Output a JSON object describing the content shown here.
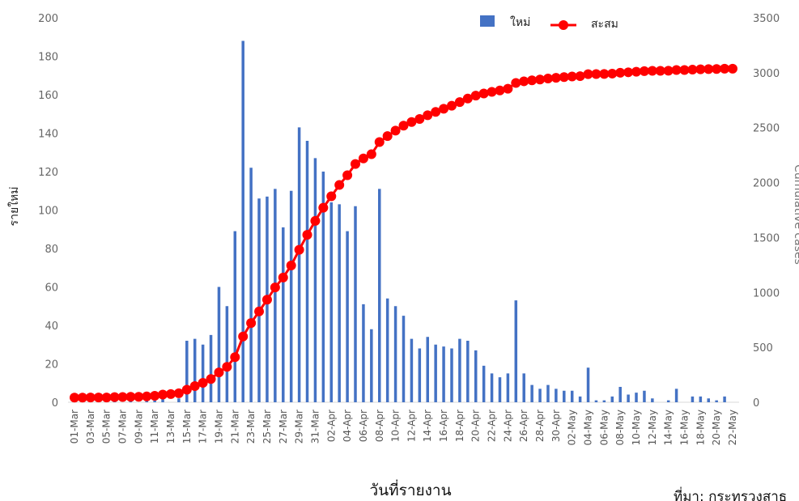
{
  "chart_data": {
    "type": "bar+line",
    "title": "",
    "xlabel": "วันที่รายงาน",
    "ylabel": "รายใหม่",
    "y2label": "Cumulative cases",
    "source": "ที่มา: กระทรวงสาธ",
    "ylim": [
      0,
      200
    ],
    "y2lim": [
      0,
      3500
    ],
    "yticks": [
      0,
      20,
      40,
      60,
      80,
      100,
      120,
      140,
      160,
      180,
      200
    ],
    "y2ticks": [
      0,
      500,
      1000,
      1500,
      2000,
      2500,
      3000,
      3500
    ],
    "grid": false,
    "legend_position": "top-right",
    "x": [
      "01-Mar",
      "02-Mar",
      "03-Mar",
      "04-Mar",
      "05-Mar",
      "06-Mar",
      "07-Mar",
      "08-Mar",
      "09-Mar",
      "10-Mar",
      "11-Mar",
      "12-Mar",
      "13-Mar",
      "14-Mar",
      "15-Mar",
      "16-Mar",
      "17-Mar",
      "18-Mar",
      "19-Mar",
      "20-Mar",
      "21-Mar",
      "22-Mar",
      "23-Mar",
      "24-Mar",
      "25-Mar",
      "26-Mar",
      "27-Mar",
      "28-Mar",
      "29-Mar",
      "30-Mar",
      "31-Mar",
      "01-Apr",
      "02-Apr",
      "03-Apr",
      "04-Apr",
      "05-Apr",
      "06-Apr",
      "07-Apr",
      "08-Apr",
      "09-Apr",
      "10-Apr",
      "11-Apr",
      "12-Apr",
      "13-Apr",
      "14-Apr",
      "15-Apr",
      "16-Apr",
      "17-Apr",
      "18-Apr",
      "19-Apr",
      "20-Apr",
      "21-Apr",
      "22-Apr",
      "23-Apr",
      "24-Apr",
      "25-Apr",
      "26-Apr",
      "27-Apr",
      "28-Apr",
      "29-Apr",
      "30-Apr",
      "01-May",
      "02-May",
      "03-May",
      "04-May",
      "05-May",
      "06-May",
      "07-May",
      "08-May",
      "09-May",
      "10-May",
      "11-May",
      "12-May",
      "13-May",
      "14-May",
      "15-May",
      "16-May",
      "17-May",
      "18-May",
      "19-May",
      "20-May",
      "21-May",
      "22-May"
    ],
    "xticks_shown": [
      "01-Mar",
      "03-Mar",
      "05-Mar",
      "07-Mar",
      "09-Mar",
      "11-Mar",
      "13-Mar",
      "15-Mar",
      "17-Mar",
      "19-Mar",
      "21-Mar",
      "23-Mar",
      "25-Mar",
      "27-Mar",
      "29-Mar",
      "31-Mar",
      "02-Apr",
      "04-Apr",
      "06-Apr",
      "08-Apr",
      "10-Apr",
      "12-Apr",
      "14-Apr",
      "16-Apr",
      "18-Apr",
      "20-Apr",
      "22-Apr",
      "24-Apr",
      "26-Apr",
      "28-Apr",
      "30-Apr",
      "02-May",
      "04-May",
      "06-May",
      "08-May",
      "10-May",
      "12-May",
      "14-May",
      "16-May",
      "18-May",
      "20-May",
      "22-May"
    ],
    "series": [
      {
        "name": "ใหม่",
        "type": "bar",
        "axis": "left",
        "color": "#4472C4",
        "values": [
          0,
          0,
          1,
          0,
          0,
          1,
          0,
          1,
          0,
          1,
          5,
          2,
          0,
          2,
          32,
          33,
          30,
          35,
          60,
          50,
          89,
          188,
          122,
          106,
          107,
          111,
          91,
          110,
          143,
          136,
          127,
          120,
          104,
          103,
          89,
          102,
          51,
          38,
          111,
          54,
          50,
          45,
          33,
          28,
          34,
          30,
          29,
          28,
          33,
          32,
          27,
          19,
          15,
          13,
          15,
          53,
          15,
          9,
          7,
          9,
          7,
          6,
          6,
          3,
          18,
          1,
          1,
          3,
          8,
          4,
          5,
          6,
          2,
          0,
          1,
          7,
          0,
          3,
          3,
          2,
          1,
          3,
          0
        ]
      },
      {
        "name": "สะสม",
        "type": "line",
        "axis": "right",
        "color": "#FF0000",
        "values": [
          42,
          42,
          43,
          43,
          43,
          47,
          48,
          50,
          50,
          53,
          59,
          70,
          75,
          82,
          114,
          147,
          177,
          212,
          272,
          322,
          411,
          599,
          721,
          827,
          934,
          1045,
          1136,
          1245,
          1388,
          1524,
          1651,
          1771,
          1875,
          1978,
          2067,
          2169,
          2220,
          2258,
          2369,
          2423,
          2473,
          2518,
          2551,
          2579,
          2613,
          2643,
          2672,
          2700,
          2733,
          2765,
          2792,
          2811,
          2826,
          2839,
          2854,
          2907,
          2922,
          2931,
          2938,
          2947,
          2954,
          2960,
          2966,
          2969,
          2987,
          2988,
          2989,
          2992,
          3000,
          3004,
          3009,
          3015,
          3017,
          3017,
          3018,
          3025,
          3025,
          3028,
          3031,
          3033,
          3034,
          3037,
          3037
        ]
      }
    ]
  }
}
